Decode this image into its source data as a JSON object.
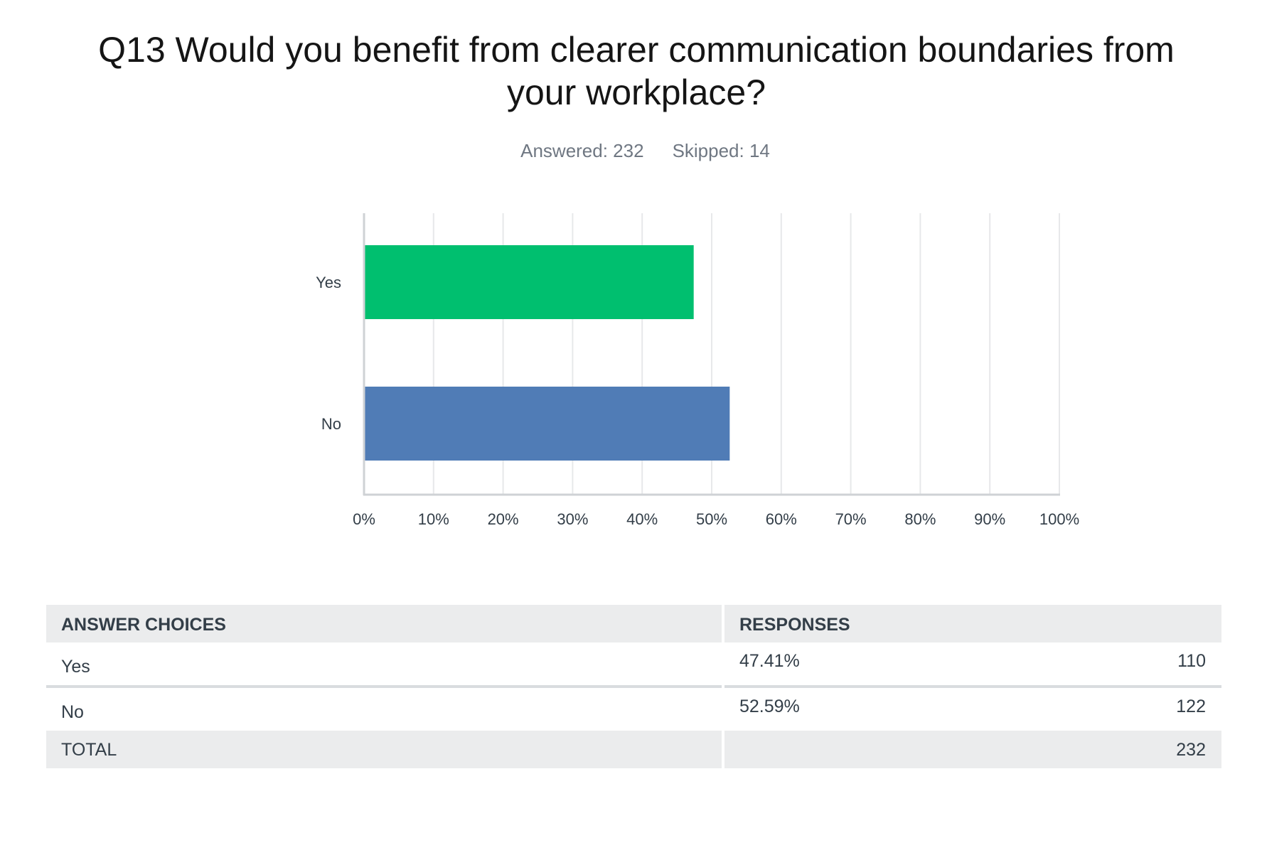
{
  "question": {
    "title": "Q13 Would you benefit from clearer communication boundaries from your workplace?",
    "answered_label": "Answered: 232",
    "skipped_label": "Skipped: 14"
  },
  "chart_data": {
    "type": "bar",
    "orientation": "horizontal",
    "categories": [
      "Yes",
      "No"
    ],
    "values": [
      47.41,
      52.59
    ],
    "colors": [
      "#00bf6f",
      "#507cb6"
    ],
    "xlim": [
      0,
      100
    ],
    "xticks": [
      "0%",
      "10%",
      "20%",
      "30%",
      "40%",
      "50%",
      "60%",
      "70%",
      "80%",
      "90%",
      "100%"
    ],
    "grid": true,
    "legend": "none"
  },
  "table": {
    "header_choice": "ANSWER CHOICES",
    "header_responses": "RESPONSES",
    "rows": [
      {
        "choice": "Yes",
        "percent": "47.41%",
        "count": "110"
      },
      {
        "choice": "No",
        "percent": "52.59%",
        "count": "122"
      }
    ],
    "total_label": "TOTAL",
    "total_count": "232"
  }
}
